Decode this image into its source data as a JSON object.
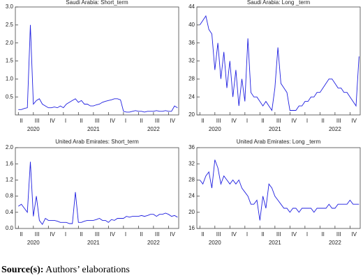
{
  "chart_data": [
    {
      "type": "line",
      "title": "Saudi Arabia: Short_term",
      "color": "#1f1fe0",
      "xlim": [
        2020.2,
        2022.92
      ],
      "xticks": [
        {
          "value": 2020.25,
          "label": "II"
        },
        {
          "value": 2020.5,
          "label": "III"
        },
        {
          "value": 2020.75,
          "label": "IV"
        },
        {
          "value": 2021.0,
          "label": "I"
        },
        {
          "value": 2021.25,
          "label": "II"
        },
        {
          "value": 2021.5,
          "label": "III"
        },
        {
          "value": 2021.75,
          "label": "IV"
        },
        {
          "value": 2022.0,
          "label": "I"
        },
        {
          "value": 2022.25,
          "label": "II"
        },
        {
          "value": 2022.5,
          "label": "III"
        },
        {
          "value": 2022.75,
          "label": "IV"
        }
      ],
      "year_ticks": [
        {
          "value": 2020.5,
          "label": "2020"
        },
        {
          "value": 2021.5,
          "label": "2021"
        },
        {
          "value": 2022.5,
          "label": "2022"
        }
      ],
      "ylim": [
        0,
        3
      ],
      "yticks": [
        {
          "value": 0.5,
          "label": "0.5"
        },
        {
          "value": 1,
          "label": "1.0"
        },
        {
          "value": 1.5,
          "label": "1.5"
        },
        {
          "value": 2,
          "label": "2.0"
        },
        {
          "value": 2.5,
          "label": "2.5"
        },
        {
          "value": 3,
          "label": "3.0"
        }
      ],
      "x": [
        2020.25,
        2020.3,
        2020.35,
        2020.4,
        2020.45,
        2020.5,
        2020.55,
        2020.6,
        2020.65,
        2020.7,
        2020.75,
        2020.8,
        2020.85,
        2020.9,
        2020.95,
        2021.0,
        2021.05,
        2021.1,
        2021.15,
        2021.2,
        2021.25,
        2021.3,
        2021.35,
        2021.4,
        2021.45,
        2021.5,
        2021.55,
        2021.6,
        2021.65,
        2021.7,
        2021.75,
        2021.8,
        2021.85,
        2021.9,
        2021.95,
        2022.0,
        2022.05,
        2022.1,
        2022.15,
        2022.2,
        2022.25,
        2022.3,
        2022.35,
        2022.4,
        2022.45,
        2022.5,
        2022.55,
        2022.6,
        2022.65,
        2022.7,
        2022.75,
        2022.8,
        2022.85,
        2022.9
      ],
      "values": [
        0.15,
        0.15,
        0.18,
        0.2,
        2.5,
        0.3,
        0.4,
        0.45,
        0.3,
        0.25,
        0.2,
        0.2,
        0.22,
        0.2,
        0.25,
        0.2,
        0.3,
        0.35,
        0.4,
        0.45,
        0.35,
        0.4,
        0.3,
        0.3,
        0.25,
        0.25,
        0.28,
        0.3,
        0.35,
        0.38,
        0.4,
        0.42,
        0.45,
        0.45,
        0.42,
        0.1,
        0.08,
        0.08,
        0.1,
        0.12,
        0.1,
        0.1,
        0.08,
        0.1,
        0.1,
        0.1,
        0.12,
        0.1,
        0.1,
        0.12,
        0.1,
        0.1,
        0.25,
        0.2
      ]
    },
    {
      "type": "line",
      "title": "Saudi Arabia: Long _term",
      "color": "#1f1fe0",
      "xlim": [
        2020.2,
        2022.92
      ],
      "xticks": [
        {
          "value": 2020.25,
          "label": "II"
        },
        {
          "value": 2020.5,
          "label": "III"
        },
        {
          "value": 2020.75,
          "label": "IV"
        },
        {
          "value": 2021.0,
          "label": "I"
        },
        {
          "value": 2021.25,
          "label": "II"
        },
        {
          "value": 2021.5,
          "label": "III"
        },
        {
          "value": 2021.75,
          "label": "IV"
        },
        {
          "value": 2022.0,
          "label": "I"
        },
        {
          "value": 2022.25,
          "label": "II"
        },
        {
          "value": 2022.5,
          "label": "III"
        },
        {
          "value": 2022.75,
          "label": "IV"
        }
      ],
      "year_ticks": [
        {
          "value": 2020.5,
          "label": "2020"
        },
        {
          "value": 2021.5,
          "label": "2021"
        },
        {
          "value": 2022.5,
          "label": "2022"
        }
      ],
      "ylim": [
        20,
        44
      ],
      "yticks": [
        20,
        24,
        28,
        32,
        36,
        40,
        44
      ],
      "x": [
        2020.25,
        2020.3,
        2020.35,
        2020.4,
        2020.45,
        2020.5,
        2020.55,
        2020.6,
        2020.65,
        2020.7,
        2020.75,
        2020.8,
        2020.85,
        2020.9,
        2020.95,
        2021.0,
        2021.05,
        2021.1,
        2021.15,
        2021.2,
        2021.25,
        2021.3,
        2021.35,
        2021.4,
        2021.45,
        2021.5,
        2021.55,
        2021.6,
        2021.65,
        2021.7,
        2021.75,
        2021.8,
        2021.85,
        2021.9,
        2021.95,
        2022.0,
        2022.05,
        2022.1,
        2022.15,
        2022.2,
        2022.25,
        2022.3,
        2022.35,
        2022.4,
        2022.45,
        2022.5,
        2022.55,
        2022.6,
        2022.65,
        2022.7,
        2022.75,
        2022.8,
        2022.85,
        2022.9
      ],
      "values": [
        40,
        41,
        42,
        39,
        38,
        30,
        36,
        28,
        34,
        26,
        32,
        24,
        30,
        22,
        28,
        23,
        37,
        25,
        24,
        24,
        23,
        22,
        23,
        22,
        21,
        26,
        35,
        27,
        26,
        25,
        21,
        21,
        21,
        22,
        22,
        23,
        23,
        24,
        24,
        25,
        25,
        26,
        27,
        28,
        28,
        27,
        26,
        26,
        25,
        25,
        24,
        23,
        22,
        33
      ]
    },
    {
      "type": "line",
      "title": "United Arab Emirates: Short_term",
      "color": "#1f1fe0",
      "xlim": [
        2020.2,
        2022.92
      ],
      "xticks": [
        {
          "value": 2020.25,
          "label": "II"
        },
        {
          "value": 2020.5,
          "label": "III"
        },
        {
          "value": 2020.75,
          "label": "IV"
        },
        {
          "value": 2021.0,
          "label": "I"
        },
        {
          "value": 2021.25,
          "label": "II"
        },
        {
          "value": 2021.5,
          "label": "III"
        },
        {
          "value": 2021.75,
          "label": "IV"
        },
        {
          "value": 2022.0,
          "label": "I"
        },
        {
          "value": 2022.25,
          "label": "II"
        },
        {
          "value": 2022.5,
          "label": "III"
        },
        {
          "value": 2022.75,
          "label": "IV"
        }
      ],
      "year_ticks": [
        {
          "value": 2020.5,
          "label": "2020"
        },
        {
          "value": 2021.5,
          "label": "2021"
        },
        {
          "value": 2022.5,
          "label": "2022"
        }
      ],
      "ylim": [
        0,
        2
      ],
      "yticks": [
        {
          "value": 0,
          "label": "0.0"
        },
        {
          "value": 0.4,
          "label": "0.4"
        },
        {
          "value": 0.8,
          "label": "0.8"
        },
        {
          "value": 1.2,
          "label": "1.2"
        },
        {
          "value": 1.6,
          "label": "1.6"
        },
        {
          "value": 2,
          "label": "2.0"
        }
      ],
      "x": [
        2020.25,
        2020.3,
        2020.35,
        2020.4,
        2020.45,
        2020.5,
        2020.55,
        2020.6,
        2020.65,
        2020.7,
        2020.75,
        2020.8,
        2020.85,
        2020.9,
        2020.95,
        2021.0,
        2021.05,
        2021.1,
        2021.15,
        2021.2,
        2021.25,
        2021.3,
        2021.35,
        2021.4,
        2021.45,
        2021.5,
        2021.55,
        2021.6,
        2021.65,
        2021.7,
        2021.75,
        2021.8,
        2021.85,
        2021.9,
        2021.95,
        2022.0,
        2022.05,
        2022.1,
        2022.15,
        2022.2,
        2022.25,
        2022.3,
        2022.35,
        2022.4,
        2022.45,
        2022.5,
        2022.55,
        2022.6,
        2022.65,
        2022.7,
        2022.75,
        2022.8,
        2022.85,
        2022.9
      ],
      "values": [
        0.55,
        0.6,
        0.5,
        0.4,
        1.65,
        0.3,
        0.8,
        0.2,
        0.1,
        0.25,
        0.2,
        0.2,
        0.2,
        0.18,
        0.15,
        0.15,
        0.15,
        0.12,
        0.12,
        0.9,
        0.15,
        0.15,
        0.18,
        0.2,
        0.2,
        0.2,
        0.22,
        0.25,
        0.2,
        0.2,
        0.15,
        0.22,
        0.2,
        0.25,
        0.25,
        0.25,
        0.3,
        0.28,
        0.3,
        0.3,
        0.3,
        0.32,
        0.3,
        0.32,
        0.35,
        0.35,
        0.3,
        0.35,
        0.35,
        0.38,
        0.35,
        0.3,
        0.32,
        0.28
      ]
    },
    {
      "type": "line",
      "title": "United Arab Emirates: Long _term",
      "color": "#1f1fe0",
      "xlim": [
        2020.2,
        2022.92
      ],
      "xticks": [
        {
          "value": 2020.25,
          "label": "II"
        },
        {
          "value": 2020.5,
          "label": "III"
        },
        {
          "value": 2020.75,
          "label": "IV"
        },
        {
          "value": 2021.0,
          "label": "I"
        },
        {
          "value": 2021.25,
          "label": "II"
        },
        {
          "value": 2021.5,
          "label": "III"
        },
        {
          "value": 2021.75,
          "label": "IV"
        },
        {
          "value": 2022.0,
          "label": "I"
        },
        {
          "value": 2022.25,
          "label": "II"
        },
        {
          "value": 2022.5,
          "label": "III"
        },
        {
          "value": 2022.75,
          "label": "IV"
        }
      ],
      "year_ticks": [
        {
          "value": 2020.5,
          "label": "2020"
        },
        {
          "value": 2021.5,
          "label": "2021"
        },
        {
          "value": 2022.5,
          "label": "2022"
        }
      ],
      "ylim": [
        16,
        36
      ],
      "yticks": [
        16,
        20,
        24,
        28,
        32,
        36
      ],
      "x": [
        2020.25,
        2020.3,
        2020.35,
        2020.4,
        2020.45,
        2020.5,
        2020.55,
        2020.6,
        2020.65,
        2020.7,
        2020.75,
        2020.8,
        2020.85,
        2020.9,
        2020.95,
        2021.0,
        2021.05,
        2021.1,
        2021.15,
        2021.2,
        2021.25,
        2021.3,
        2021.35,
        2021.4,
        2021.45,
        2021.5,
        2021.55,
        2021.6,
        2021.65,
        2021.7,
        2021.75,
        2021.8,
        2021.85,
        2021.9,
        2021.95,
        2022.0,
        2022.05,
        2022.1,
        2022.15,
        2022.2,
        2022.25,
        2022.3,
        2022.35,
        2022.4,
        2022.45,
        2022.5,
        2022.55,
        2022.6,
        2022.65,
        2022.7,
        2022.75,
        2022.8,
        2022.85,
        2022.9
      ],
      "values": [
        28,
        27,
        29,
        30,
        26,
        33,
        31,
        27,
        29,
        28,
        27,
        28,
        27,
        28,
        26,
        25,
        24,
        22,
        22,
        23,
        18,
        24,
        21,
        27,
        26,
        24,
        23,
        22,
        21,
        21,
        20,
        21,
        21,
        20,
        21,
        21,
        21,
        21,
        20,
        21,
        21,
        21,
        21,
        22,
        21,
        21,
        22,
        22,
        22,
        22,
        23,
        22,
        22,
        22
      ]
    }
  ],
  "caption": {
    "label": "Source(s):",
    "text": "Authors’ elaborations"
  }
}
